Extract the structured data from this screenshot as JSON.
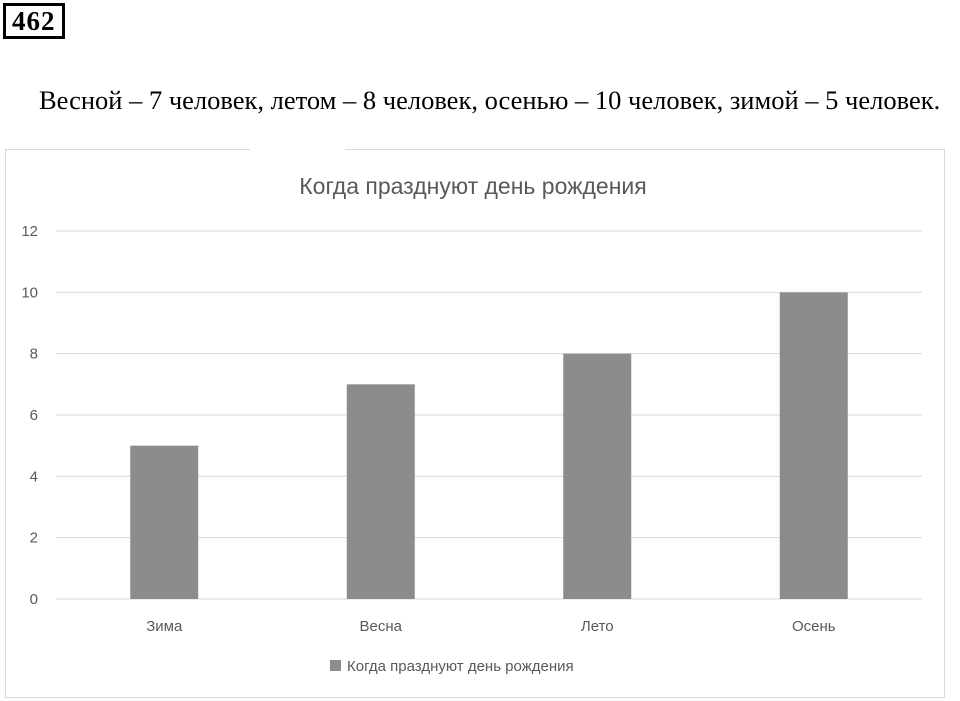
{
  "problem": {
    "number": "462",
    "answer_text": "Весной – 7 человек, летом – 8 человек, осенью – 10 человек, зимой – 5 человек."
  },
  "chart_data": {
    "type": "bar",
    "title": "Когда празднуют день рождения",
    "categories": [
      "Зима",
      "Весна",
      "Лето",
      "Осень"
    ],
    "series": [
      {
        "name": "Когда празднуют день рождения",
        "values": [
          5,
          7,
          8,
          10
        ],
        "color": "#8c8c8c"
      }
    ],
    "xlabel": "",
    "ylabel": "",
    "ylim": [
      0,
      12
    ],
    "yticks": [
      0,
      2,
      4,
      6,
      8,
      10,
      12
    ],
    "grid": true,
    "gridline_color": "#d9d9d9",
    "legend": "bottom"
  }
}
